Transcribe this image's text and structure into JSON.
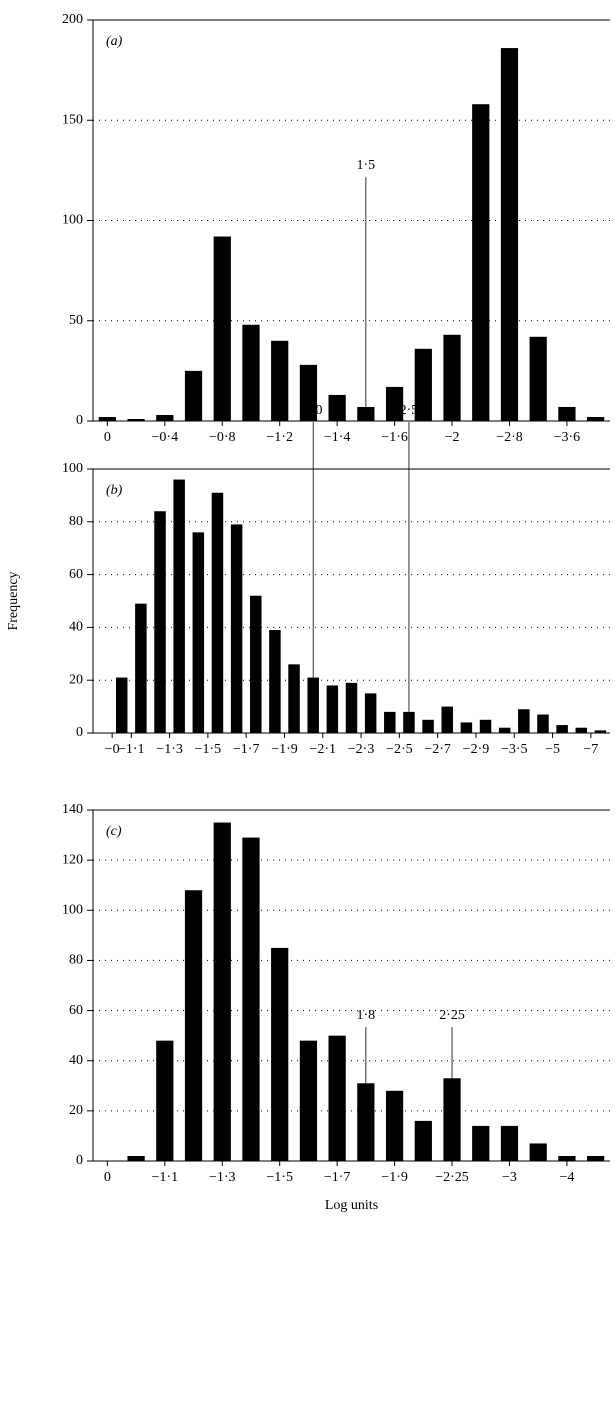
{
  "chart_data": [
    {
      "type": "bar",
      "panel_label": "(a)",
      "categories": [
        "0",
        null,
        "−0·4",
        null,
        "−0·8",
        null,
        "−1·2",
        null,
        "−1·4",
        null,
        "−1·6",
        null,
        "−2",
        null,
        "−2·8",
        null,
        "−3·6",
        null
      ],
      "values": [
        2,
        1,
        3,
        25,
        92,
        48,
        40,
        28,
        13,
        7,
        17,
        36,
        43,
        158,
        186,
        42,
        7,
        2
      ],
      "color": "#000000",
      "ylim": [
        0,
        200
      ],
      "yticks": [
        0,
        50,
        100,
        150,
        200
      ],
      "grid": true,
      "annotations": [
        "1·5"
      ]
    },
    {
      "type": "bar",
      "panel_label": "(b)",
      "ylabel": "Frequency",
      "categories": [
        "−0",
        "−1·1",
        null,
        "−1·3",
        null,
        "−1·5",
        null,
        "−1·7",
        null,
        "−1·9",
        null,
        "−2·1",
        null,
        "−2·3",
        null,
        "−2·5",
        null,
        "−2·7",
        null,
        "−2·9",
        null,
        "−3·5",
        null,
        "−5",
        null,
        "−7",
        null
      ],
      "values": [
        null,
        21,
        49,
        84,
        96,
        76,
        91,
        79,
        52,
        39,
        26,
        21,
        18,
        19,
        15,
        8,
        8,
        5,
        10,
        4,
        5,
        2,
        9,
        7,
        3,
        2,
        1
      ],
      "color": "#000000",
      "ylim": [
        0,
        100
      ],
      "yticks": [
        0,
        20,
        40,
        60,
        80,
        100
      ],
      "grid": true,
      "annotations": [
        "2·0",
        "2·5"
      ]
    },
    {
      "type": "bar",
      "panel_label": "(c)",
      "xlabel": "Log units",
      "categories": [
        "0",
        null,
        "−1·1",
        null,
        "−1·3",
        null,
        "−1·5",
        null,
        "−1·7",
        null,
        "−1·9",
        null,
        "−2·25",
        null,
        "−3",
        null,
        "−4",
        null
      ],
      "values": [
        null,
        2,
        48,
        108,
        135,
        129,
        85,
        48,
        50,
        31,
        28,
        16,
        33,
        14,
        14,
        7,
        2,
        2
      ],
      "color": "#000000",
      "ylim": [
        0,
        140
      ],
      "yticks": [
        0,
        20,
        40,
        60,
        80,
        100,
        120,
        140
      ],
      "grid": true,
      "annotations": [
        "1·8",
        "2·25"
      ]
    }
  ]
}
